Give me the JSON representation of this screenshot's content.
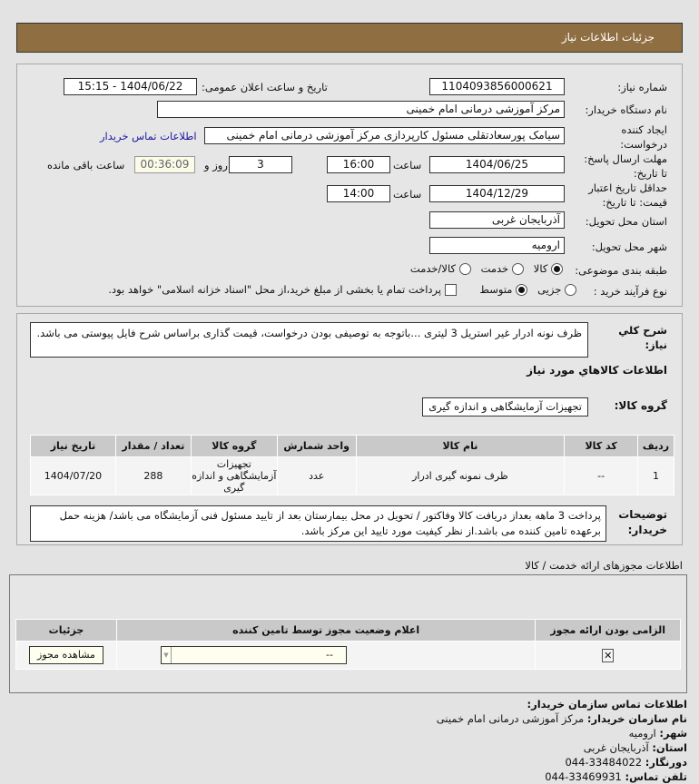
{
  "header": {
    "title": "جزئیات اطلاعات نیاز"
  },
  "form": {
    "need_number_label": "شماره نیاز:",
    "need_number": "1104093856000621",
    "announce_label": "تاریخ و ساعت اعلان عمومی:",
    "announce_value": "1404/06/22 - 15:15",
    "buyer_label": "نام دستگاه خریدار:",
    "buyer_value": "مرکز آموزشی درمانی امام خمینی",
    "creator_label_1": "ایجاد کننده",
    "creator_label_2": "درخواست:",
    "creator_value": "سیامک پورسعادتقلی مسئول کارپردازی مرکز آموزشی درمانی امام خمینی",
    "contact_link": "اطلاعات تماس خریدار",
    "deadline_label_1": "مهلت ارسال پاسخ:",
    "deadline_label_2": "تا تاریخ:",
    "deadline_date": "1404/06/25",
    "time_label": "ساعت",
    "deadline_time": "16:00",
    "days": "3",
    "days_label": "روز و",
    "remaining": "00:36:09",
    "remaining_label": "ساعت باقی مانده",
    "validity_label_1": "حداقل تاریخ اعتبار",
    "validity_label_2": "قیمت: تا تاریخ:",
    "validity_date": "1404/12/29",
    "validity_time": "14:00",
    "province_label": "استان محل تحویل:",
    "province": "آذربایجان غربی",
    "city_label": "شهر محل تحویل:",
    "city": "ارومیه",
    "category_label": "طبقه بندی موضوعی:",
    "category_options": [
      "کالا",
      "خدمت",
      "کالا/خدمت"
    ],
    "category_selected": "کالا",
    "purchase_label": "نوع فرآیند خرید :",
    "purchase_options": [
      "جزیی",
      "متوسط"
    ],
    "purchase_selected": "متوسط",
    "treasury_text": "پرداخت تمام یا بخشی از مبلغ خرید،از محل \"اسناد خزانه اسلامی\" خواهد بود."
  },
  "details": {
    "desc_label_1": "شرح کلي",
    "desc_label_2": "نیاز:",
    "description": "ظرف نونه ادرار غیر استریل 3 لیتری ...باتوجه به توصیفی بودن درخواست، قیمت گذاری براساس شرح فایل پیوستی می باشد.",
    "goods_heading": "اطلاعات کالاهاي مورد نیاز",
    "group_label": "گروه کالا:",
    "group_value": "تجهیزات آزمایشگاهی و اندازه گیری",
    "table": {
      "headers": [
        "ردیف",
        "کد کالا",
        "نام کالا",
        "واحد شمارش",
        "گروه کالا",
        "تعداد / مقدار",
        "تاریخ نیاز"
      ],
      "rows": [
        [
          "1",
          "--",
          "ظرف نمونه گیری ادرار",
          "عدد",
          "تجهیزات آزمایشگاهی و اندازه گیری",
          "288",
          "1404/07/20"
        ]
      ]
    },
    "notes_label_1": "توضیحات",
    "notes_label_2": "خریدار:",
    "notes": "پرداخت 3 ماهه بعداز دریافت کالا وفاکتور / تحویل در محل بیمارستان بعد از تایید مسئول فنی آزمایشگاه می باشد/ هزینه حمل برعهده تامین کننده می باشد.از نظر کیفیت مورد تایید این مرکز باشد."
  },
  "licenses": {
    "title": "اطلاعات مجوزهای ارائه خدمت / کالا",
    "headers": [
      "الزامی بودن ارائه مجوز",
      "اعلام وضعیت مجوز توسط تامین کننده",
      "جزئیات"
    ],
    "select_value": "--",
    "view_button": "مشاهده مجوز"
  },
  "contact": {
    "title": "اطلاعات تماس سازمان خریدار:",
    "org_label": "نام سازمان خریدار:",
    "org": "مرکز آموزشی درمانی امام خمینی",
    "city_label": "شهر:",
    "city": "ارومیه",
    "province_label": "استان:",
    "province": "آذربایجان غربی",
    "fax_label": "دورنگار:",
    "fax": "33484022-044",
    "phone_label": "تلفن تماس:",
    "phone": "33469931-044"
  }
}
